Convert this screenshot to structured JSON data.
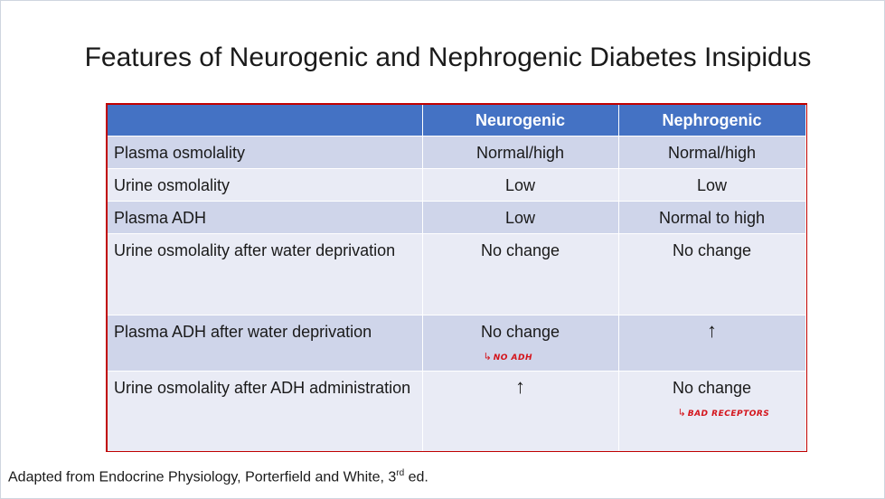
{
  "slide": {
    "title": "Features of Neurogenic and Nephrogenic Diabetes Insipidus",
    "footer": {
      "prefix": "Adapted from Endocrine Physiology, Porterfield and White, 3",
      "superscript": "rd",
      "suffix": " ed."
    }
  },
  "table": {
    "headers": [
      "",
      "Neurogenic",
      "Nephrogenic"
    ],
    "rows": [
      {
        "feature": "Plasma osmolality",
        "neurogenic": "Normal/high",
        "nephrogenic": "Normal/high"
      },
      {
        "feature": "Urine osmolality",
        "neurogenic": "Low",
        "nephrogenic": "Low"
      },
      {
        "feature": "Plasma ADH",
        "neurogenic": "Low",
        "nephrogenic": "Normal to high"
      },
      {
        "feature": "Urine osmolality after water deprivation",
        "neurogenic": "No change",
        "nephrogenic": "No change"
      },
      {
        "feature": "Plasma ADH after water deprivation",
        "neurogenic": "No change",
        "nephrogenic": "↑"
      },
      {
        "feature": "Urine osmolality after ADH administration",
        "neurogenic": "↑",
        "nephrogenic": "No change"
      }
    ]
  },
  "annotations": {
    "no_adh": "NO ADH",
    "bad_receptors": "BAD RECEPTORS",
    "arrow_glyph": "↳"
  },
  "colors": {
    "header_bg": "#4472c4",
    "band_row": "#cfd5ea",
    "light_row": "#e9ebf5",
    "table_border": "#c00000",
    "annotation_ink": "#d4141b"
  }
}
